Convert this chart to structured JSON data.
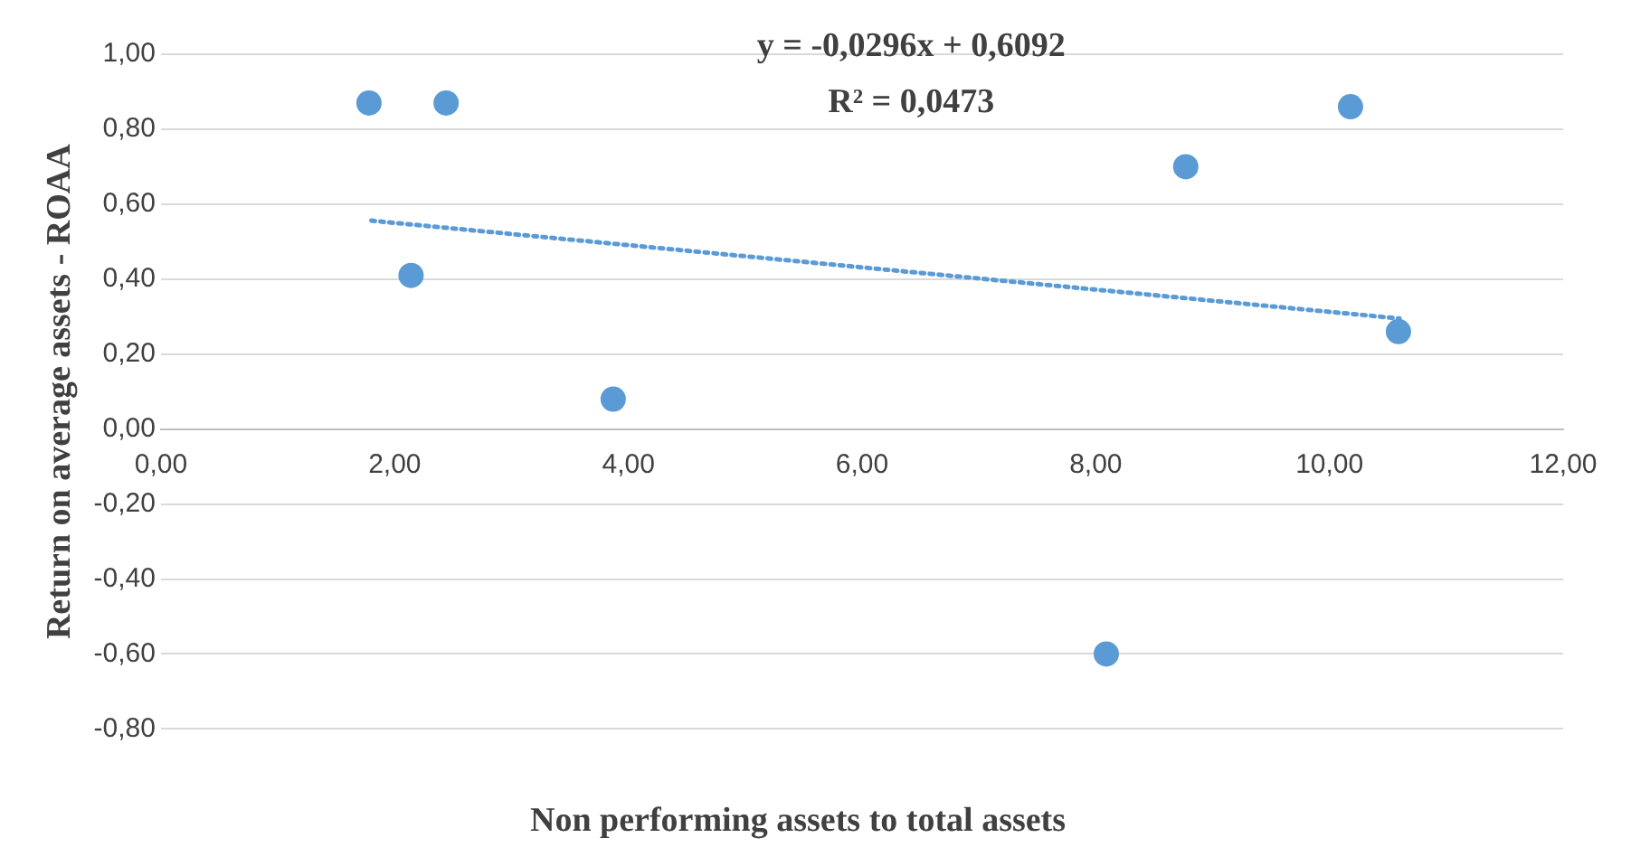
{
  "chart_data": {
    "type": "scatter",
    "xlabel": "Non performing assets to total assets",
    "ylabel": "Return on average assets - ROAA",
    "annotations": [
      "y = -0,0296x + 0,6092",
      "R² = 0,0473"
    ],
    "series": [
      {
        "type": "scatter",
        "color": "#5b9bd5",
        "x": [
          1.78,
          2.44,
          2.14,
          3.87,
          8.09,
          8.77,
          10.18,
          10.59
        ],
        "values": [
          0.87,
          0.87,
          0.41,
          0.08,
          -0.6,
          0.7,
          0.86,
          0.26
        ]
      },
      {
        "type": "line",
        "color": "#5b9bd5",
        "line_style": "dotted",
        "marker": "none",
        "x": [
          1.8,
          10.6
        ],
        "values": [
          0.556,
          0.295
        ]
      }
    ],
    "xlim": [
      0,
      12
    ],
    "xticks": [
      {
        "value": 0,
        "label": "0,00"
      },
      {
        "value": 2,
        "label": "2,00"
      },
      {
        "value": 4,
        "label": "4,00"
      },
      {
        "value": 6,
        "label": "6,00"
      },
      {
        "value": 8,
        "label": "8,00"
      },
      {
        "value": 10,
        "label": "10,00"
      },
      {
        "value": 12,
        "label": "12,00"
      }
    ],
    "ylim": [
      -0.8,
      1
    ],
    "yticks": [
      {
        "value": -0.8,
        "label": "-0,80"
      },
      {
        "value": -0.6,
        "label": "-0,60"
      },
      {
        "value": -0.4,
        "label": "-0,40"
      },
      {
        "value": -0.2,
        "label": "-0,20"
      },
      {
        "value": 0,
        "label": "0,00"
      },
      {
        "value": 0.2,
        "label": "0,20"
      },
      {
        "value": 0.4,
        "label": "0,40"
      },
      {
        "value": 0.6,
        "label": "0,60"
      },
      {
        "value": 0.8,
        "label": "0,80"
      },
      {
        "value": 1,
        "label": "1,00"
      }
    ],
    "grid": "y",
    "marker": "circle",
    "legend": false
  }
}
